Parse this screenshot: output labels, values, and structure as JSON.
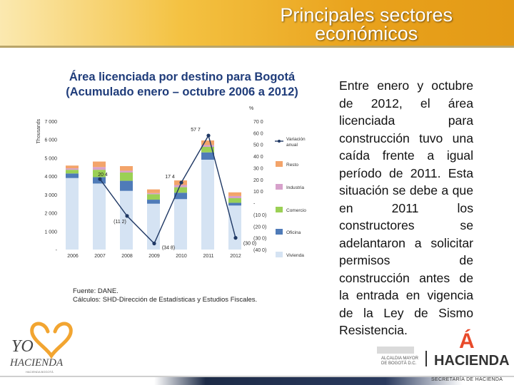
{
  "header": {
    "title_line1": "Principales sectores",
    "title_line2": "económicos"
  },
  "chart_data": {
    "type": "bar",
    "title_line1": "Área licenciada por destino para Bogotá",
    "title_line2": "(Acumulado enero – octubre 2006 a 2012)",
    "ylabel": "Thousands",
    "y2label": "%",
    "categories": [
      "2006",
      "2007",
      "2008",
      "2009",
      "2010",
      "2011",
      "2012"
    ],
    "ylim": [
      0,
      7000
    ],
    "y_ticks": [
      "-",
      "1 000",
      "2 000",
      "3 000",
      "4 000",
      "5 000",
      "6 000",
      "7 000"
    ],
    "y2lim": [
      -40,
      70
    ],
    "y2_ticks": [
      "(40 0)",
      "(30 0)",
      "(20 0)",
      "(10 0)",
      "-",
      "10 0",
      "20 0",
      "30 0",
      "40 0",
      "50 0",
      "60 0",
      "70 0"
    ],
    "series": [
      {
        "name": "Vivienda",
        "color": "#d5e3f3",
        "values": [
          3900,
          3600,
          3200,
          2500,
          2750,
          4900,
          2400
        ]
      },
      {
        "name": "Oficina",
        "color": "#4f7bb8",
        "values": [
          250,
          350,
          550,
          220,
          350,
          400,
          150
        ]
      },
      {
        "name": "Comercio",
        "color": "#9bd055",
        "values": [
          200,
          400,
          450,
          300,
          300,
          300,
          250
        ]
      },
      {
        "name": "Industria",
        "color": "#d7a1cb",
        "values": [
          80,
          150,
          100,
          60,
          120,
          100,
          120
        ]
      },
      {
        "name": "Resto",
        "color": "#f3a46a",
        "values": [
          150,
          300,
          250,
          200,
          250,
          250,
          200
        ]
      }
    ],
    "line_series": {
      "name": "Variación anual",
      "color": "#1f3864",
      "values": [
        null,
        20.4,
        -11.2,
        -34.8,
        17.4,
        57.7,
        -30.0
      ],
      "labels": [
        "",
        "20 4",
        "(11 2)",
        "(34 8)",
        "17 4",
        "57 7",
        "(30 0)"
      ]
    },
    "grid": false,
    "legend_placement": "right"
  },
  "source": {
    "line1": "Fuente: DANE.",
    "line2": "Cálculos: SHD-Dirección de Estadísticas y Estudios Fiscales."
  },
  "side_text": "Entre enero y octubre de 2012, el área licenciada para construcción tuvo una caída frente a igual período de 2011. Esta situación se debe a que en 2011 los constructores se adelantaron a solicitar permisos de construcción antes de la entrada en vigencia de la Ley de Sismo Resistencia.",
  "logos": {
    "left_line1": "YO",
    "left_line2": "HACIENDA",
    "left_small": "HACIENDA BOGOTÁ",
    "right_a": "Á",
    "right_text1": "ALCALDIA MAYOR",
    "right_text2": "DE BOGOTÁ D.C.",
    "right_word": "HACIENDA"
  },
  "footer": {
    "text": "SECRETARÍA DE HACIENDA"
  },
  "colors": {
    "header_accent": "#f0b532",
    "title_blue": "#1f3c7a",
    "heart_orange": "#f2a531"
  }
}
